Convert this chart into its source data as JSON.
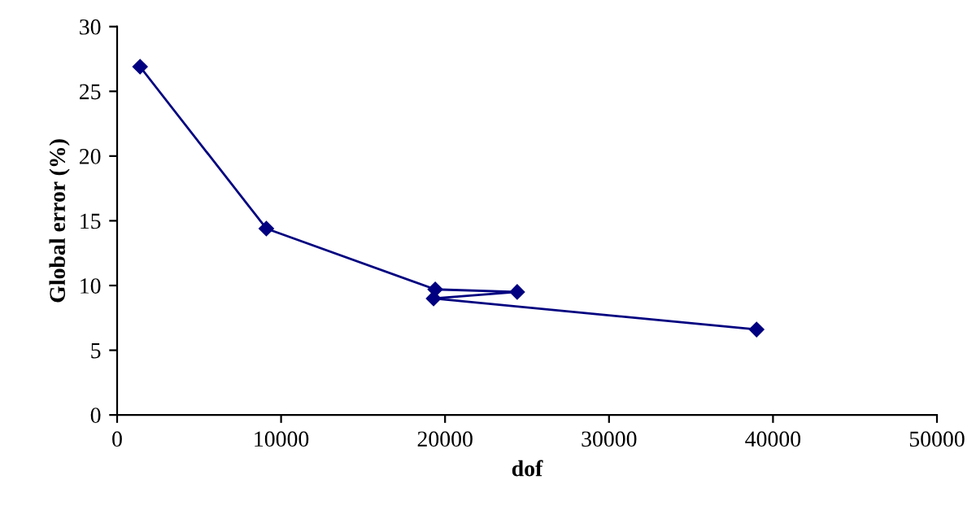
{
  "chart_data": {
    "type": "line",
    "xlabel": "dof",
    "ylabel": "Global error (%)",
    "x": [
      1400,
      9100,
      19400,
      24400,
      19300,
      39000
    ],
    "series": [
      {
        "color": "#000080",
        "values": [
          26.9,
          14.4,
          9.7,
          9.5,
          9.0,
          6.6
        ]
      }
    ],
    "xlim": [
      0,
      50000
    ],
    "xticks": [
      0,
      10000,
      20000,
      30000,
      40000,
      50000
    ],
    "ylim": [
      0,
      30
    ],
    "yticks": [
      0,
      5,
      10,
      15,
      20,
      25,
      30
    ],
    "marker": "diamond",
    "line_style": "solid",
    "grid": false,
    "legend": false
  }
}
